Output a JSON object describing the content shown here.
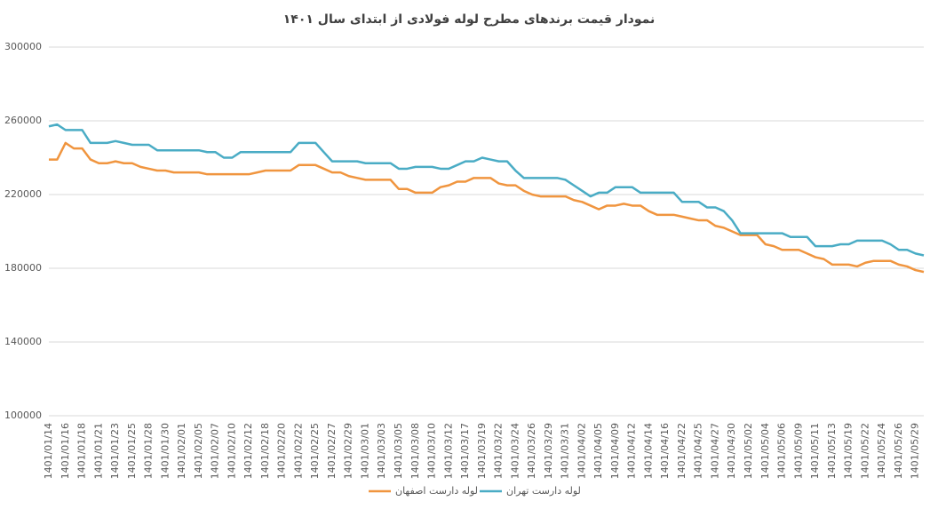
{
  "chart_data": {
    "type": "line",
    "title": "نمودار قیمت برندهای مطرح لوله فولادی از ابتدای سال ۱۴۰۱",
    "categories": [
      "1401/01/14",
      null,
      "1401/01/16",
      null,
      "1401/01/18",
      null,
      "1401/01/21",
      null,
      "1401/01/23",
      null,
      "1401/01/25",
      null,
      "1401/01/28",
      null,
      "1401/01/30",
      null,
      "1401/02/01",
      null,
      "1401/02/05",
      null,
      "1401/02/07",
      null,
      "1401/02/10",
      null,
      "1401/02/12",
      null,
      "1401/02/18",
      null,
      "1401/02/20",
      null,
      "1401/02/22",
      null,
      "1401/02/25",
      null,
      "1401/02/27",
      null,
      "1401/02/29",
      null,
      "1401/03/01",
      null,
      "1401/03/03",
      null,
      "1401/03/05",
      null,
      "1401/03/08",
      null,
      "1401/03/10",
      null,
      "1401/03/12",
      null,
      "1401/03/17",
      null,
      "1401/03/19",
      null,
      "1401/03/22",
      null,
      "1401/03/24",
      null,
      "1401/03/26",
      null,
      "1401/03/29",
      null,
      "1401/03/31",
      null,
      "1401/04/02",
      null,
      "1401/04/05",
      null,
      "1401/04/09",
      null,
      "1401/04/12",
      null,
      "1401/04/14",
      null,
      "1401/04/16",
      null,
      "1401/04/22",
      null,
      "1401/04/25",
      null,
      "1401/04/27",
      null,
      "1401/04/30",
      null,
      "1401/05/02",
      null,
      "1401/05/04",
      null,
      "1401/05/06",
      null,
      "1401/05/09",
      null,
      "1401/05/11",
      null,
      "1401/05/13",
      null,
      "1401/05/19",
      null,
      "1401/05/22",
      null,
      "1401/05/24",
      null,
      "1401/05/26",
      null,
      "1401/05/29",
      null
    ],
    "series": [
      {
        "name": "لوله دارست اصفهان",
        "color": "#f0953f",
        "values": [
          239000,
          239000,
          248000,
          245000,
          245000,
          239000,
          237000,
          237000,
          238000,
          237000,
          237000,
          235000,
          234000,
          233000,
          233000,
          232000,
          232000,
          232000,
          232000,
          231000,
          231000,
          231000,
          231000,
          231000,
          231000,
          232000,
          233000,
          233000,
          233000,
          233000,
          236000,
          236000,
          236000,
          234000,
          232000,
          232000,
          230000,
          229000,
          228000,
          228000,
          228000,
          228000,
          223000,
          223000,
          221000,
          221000,
          221000,
          224000,
          225000,
          227000,
          227000,
          229000,
          229000,
          229000,
          226000,
          225000,
          225000,
          222000,
          220000,
          219000,
          219000,
          219000,
          219000,
          217000,
          216000,
          214000,
          212000,
          214000,
          214000,
          215000,
          214000,
          214000,
          211000,
          209000,
          209000,
          209000,
          208000,
          207000,
          206000,
          206000,
          203000,
          202000,
          200000,
          198000,
          198000,
          198000,
          193000,
          192000,
          190000,
          190000,
          190000,
          188000,
          186000,
          185000,
          182000,
          182000,
          182000,
          181000,
          183000,
          184000,
          184000,
          184000,
          182000,
          181000,
          179000,
          178000
        ]
      },
      {
        "name": "لوله دارست تهران",
        "color": "#4aacc5",
        "values": [
          257000,
          258000,
          255000,
          255000,
          255000,
          248000,
          248000,
          248000,
          249000,
          248000,
          247000,
          247000,
          247000,
          244000,
          244000,
          244000,
          244000,
          244000,
          244000,
          243000,
          243000,
          240000,
          240000,
          243000,
          243000,
          243000,
          243000,
          243000,
          243000,
          243000,
          248000,
          248000,
          248000,
          243000,
          238000,
          238000,
          238000,
          238000,
          237000,
          237000,
          237000,
          237000,
          234000,
          234000,
          235000,
          235000,
          235000,
          234000,
          234000,
          236000,
          238000,
          238000,
          240000,
          239000,
          238000,
          238000,
          233000,
          229000,
          229000,
          229000,
          229000,
          229000,
          228000,
          225000,
          222000,
          219000,
          221000,
          221000,
          224000,
          224000,
          224000,
          221000,
          221000,
          221000,
          221000,
          221000,
          216000,
          216000,
          216000,
          213000,
          213000,
          211000,
          206000,
          199000,
          199000,
          199000,
          199000,
          199000,
          199000,
          197000,
          197000,
          197000,
          192000,
          192000,
          192000,
          193000,
          193000,
          195000,
          195000,
          195000,
          195000,
          193000,
          190000,
          190000,
          188000,
          187000
        ]
      }
    ],
    "ylim": [
      100000,
      300000
    ],
    "yticks": [
      100000,
      140000,
      180000,
      220000,
      260000,
      300000
    ],
    "grid": true
  }
}
